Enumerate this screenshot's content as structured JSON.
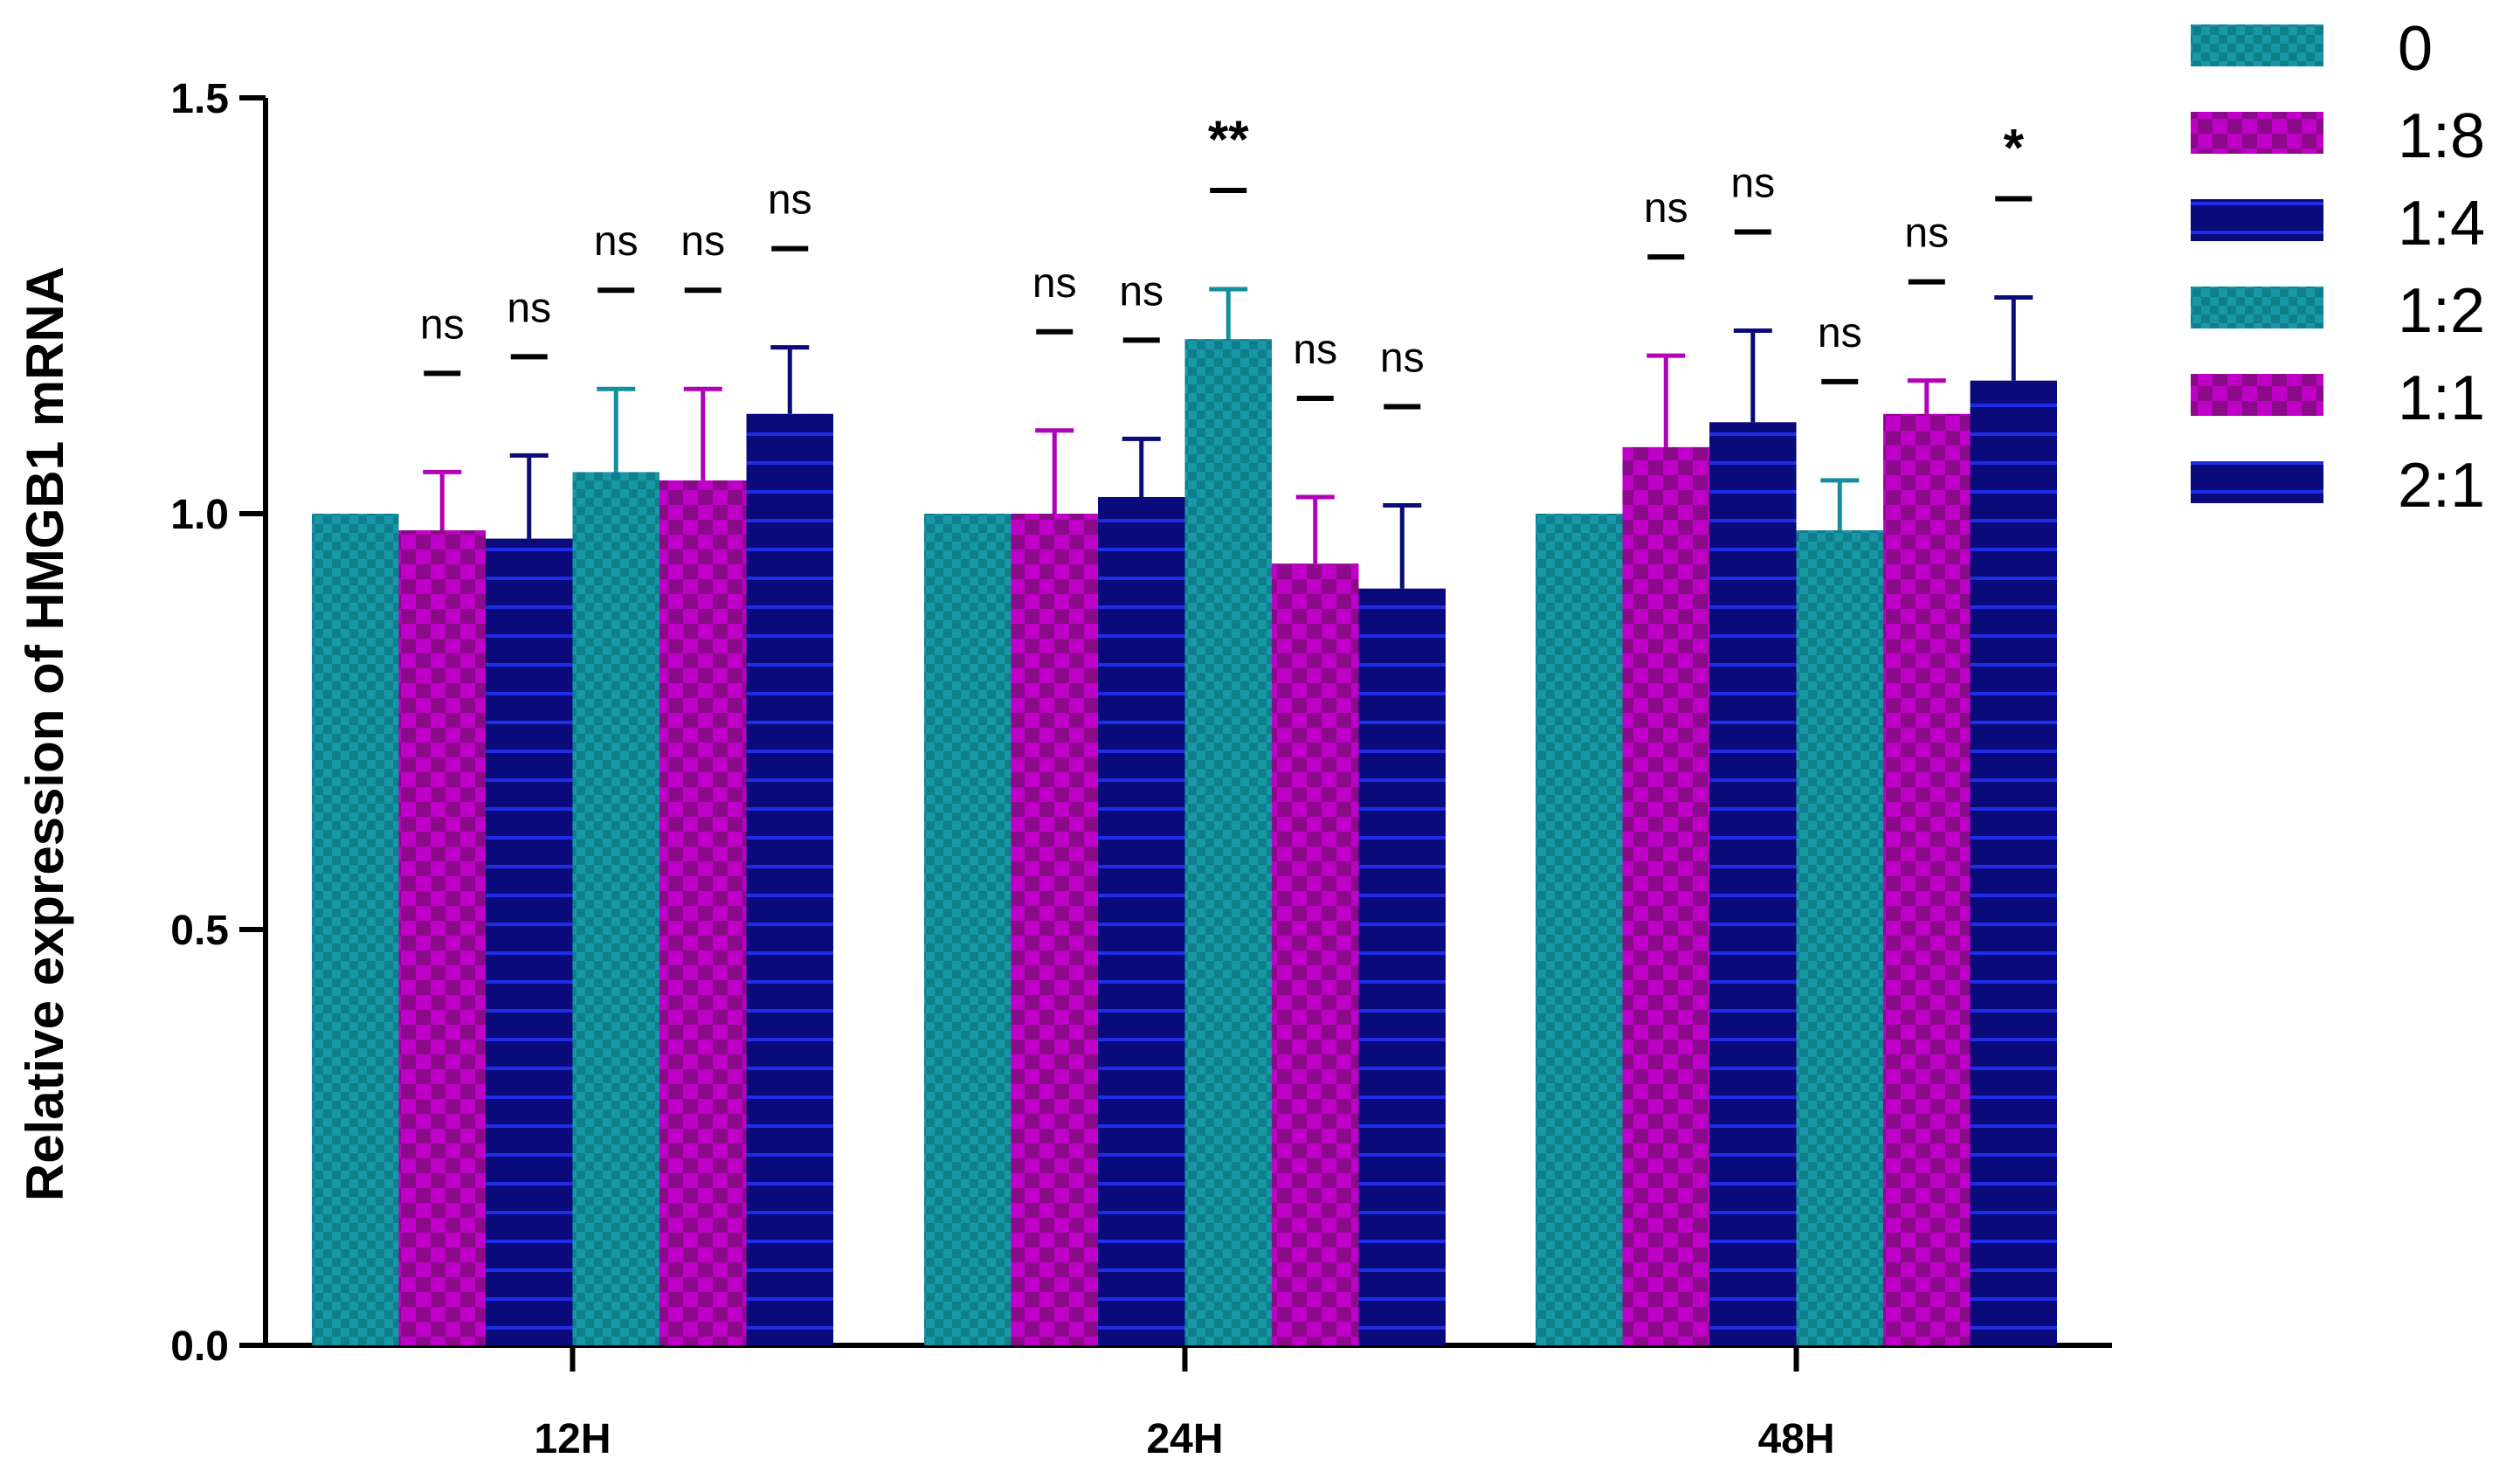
{
  "chart_data": {
    "type": "bar",
    "title": "",
    "xlabel": "",
    "ylabel": "Relative expression of HMGB1 mRNA",
    "ylim": [
      0,
      1.5
    ],
    "yticks": [
      "0.0",
      "0.5",
      "1.0",
      "1.5"
    ],
    "categories": [
      "12H",
      "24H",
      "48H"
    ],
    "legend_position": "top-right",
    "grid": false,
    "series": [
      {
        "name": "0",
        "color": "#138f9c",
        "pattern": "teal-checker",
        "values": [
          1.0,
          1.0,
          1.0
        ],
        "errors": [
          0,
          0,
          0
        ],
        "significance": [
          "",
          "",
          ""
        ]
      },
      {
        "name": "1:8",
        "color": "#b000b8",
        "pattern": "magenta-checker",
        "values": [
          0.98,
          1.0,
          1.08
        ],
        "errors": [
          0.07,
          0.1,
          0.11
        ],
        "significance": [
          "ns",
          "ns",
          "ns"
        ]
      },
      {
        "name": "1:4",
        "color": "#0a0a78",
        "pattern": "navy-stripe",
        "values": [
          0.97,
          1.02,
          1.11
        ],
        "errors": [
          0.1,
          0.07,
          0.11
        ],
        "significance": [
          "ns",
          "ns",
          "ns"
        ]
      },
      {
        "name": "1:2",
        "color": "#138f9c",
        "pattern": "teal-checker",
        "values": [
          1.05,
          1.21,
          0.98
        ],
        "errors": [
          0.1,
          0.06,
          0.06
        ],
        "significance": [
          "ns",
          "**",
          "ns"
        ]
      },
      {
        "name": "1:1",
        "color": "#b000b8",
        "pattern": "magenta-checker",
        "values": [
          1.04,
          0.94,
          1.12
        ],
        "errors": [
          0.11,
          0.08,
          0.04
        ],
        "significance": [
          "ns",
          "ns",
          "ns"
        ]
      },
      {
        "name": "2:1",
        "color": "#0a0a78",
        "pattern": "navy-stripe",
        "values": [
          1.12,
          0.91,
          1.16
        ],
        "errors": [
          0.08,
          0.1,
          0.1
        ],
        "significance": [
          "ns",
          "ns",
          "*"
        ]
      }
    ]
  }
}
